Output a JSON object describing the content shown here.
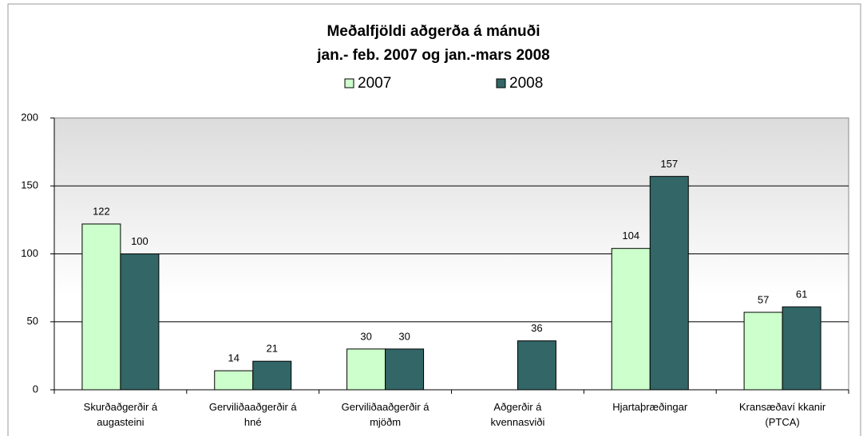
{
  "chart_data": {
    "type": "bar",
    "title": "Meðalfjöldi aðgerða á mánuði",
    "subtitle": "jan.- feb. 2007 og jan.-mars 2008",
    "categories": [
      "Skurðaðgerðir á augasteini",
      "Gerviliðaaðgerðir á hné",
      "Gerviliðaaðgerðir á mjöðm",
      "Aðgerðir á kvennasviði",
      "Hjartaþræðingar",
      "Kransæðaví kkanir (PTCA)"
    ],
    "series": [
      {
        "name": "2007",
        "color": "#ccffcc",
        "values": [
          122,
          14,
          30,
          null,
          104,
          57
        ]
      },
      {
        "name": "2008",
        "color": "#336666",
        "values": [
          100,
          21,
          30,
          36,
          157,
          61
        ]
      }
    ],
    "ylim": [
      0,
      200
    ],
    "yticks": [
      0,
      50,
      100,
      150,
      200
    ],
    "grid": true,
    "legend": "top"
  }
}
